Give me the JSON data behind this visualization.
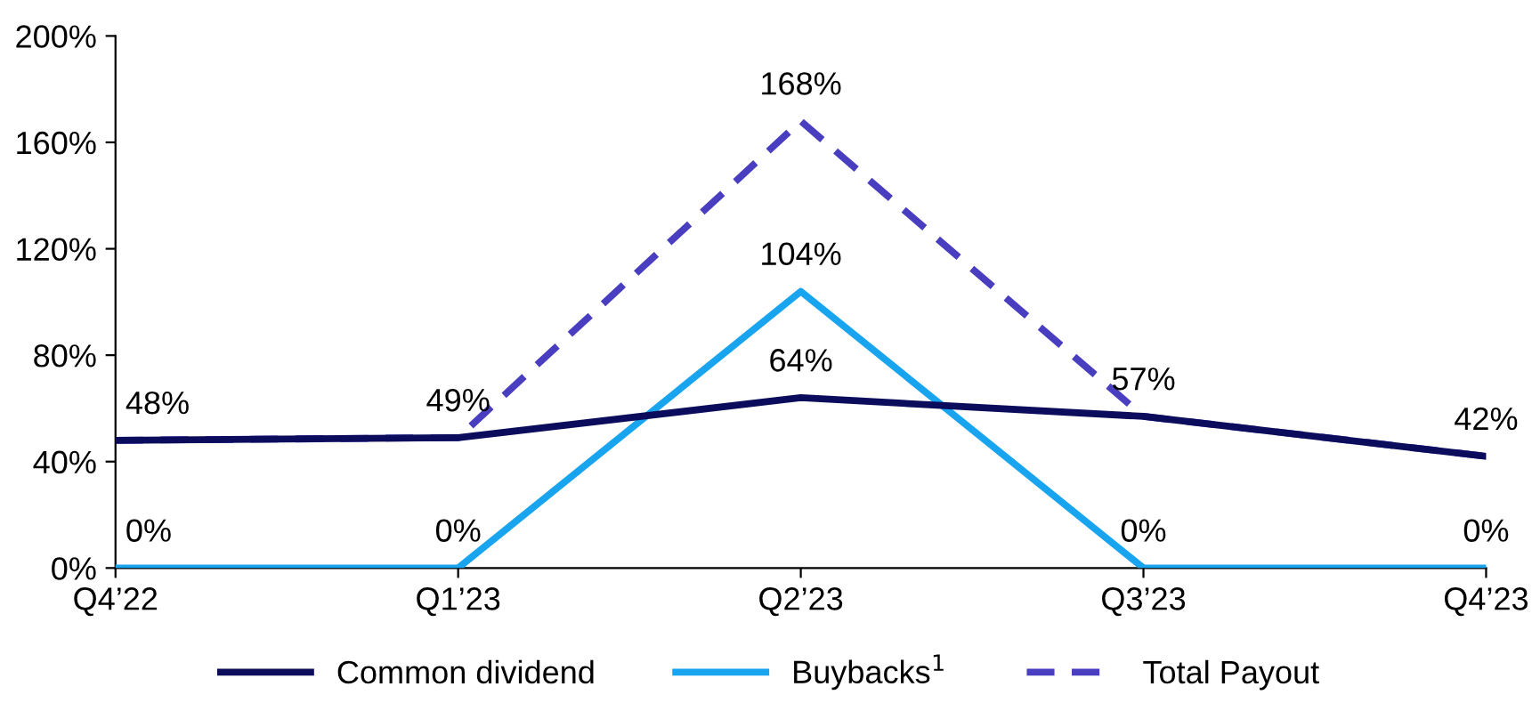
{
  "chart_data": {
    "type": "line",
    "categories": [
      "Q4’22",
      "Q1’23",
      "Q2’23",
      "Q3’23",
      "Q4’23"
    ],
    "series": [
      {
        "name": "Common dividend",
        "color": "#0b0d5c",
        "values": [
          48,
          49,
          64,
          57,
          42
        ],
        "line_style": "solid",
        "value_labels": [
          "48%",
          "49%",
          "64%",
          "57%",
          "42%"
        ]
      },
      {
        "name": "Buybacks$^{1}$",
        "color": "#19a4f0",
        "values": [
          0,
          0,
          104,
          0,
          0
        ],
        "line_style": "solid",
        "value_labels": [
          "0%",
          "0%",
          "104%",
          "0%",
          "0%"
        ]
      },
      {
        "name": "Total Payout",
        "color": "#4a3ec0",
        "values": [
          48,
          49,
          168,
          57,
          42
        ],
        "line_style": "dashed",
        "value_labels": [
          null,
          null,
          "168%",
          null,
          null
        ]
      }
    ],
    "ylim": [
      0,
      200
    ],
    "yticks": [
      {
        "value": 0,
        "label": "0%"
      },
      {
        "value": 40,
        "label": "40%"
      },
      {
        "value": 80,
        "label": "80%"
      },
      {
        "value": 120,
        "label": "120%"
      },
      {
        "value": 160,
        "label": "160%"
      },
      {
        "value": 200,
        "label": "200%"
      }
    ],
    "grid": false,
    "legend": "bottom",
    "marker": "none"
  }
}
